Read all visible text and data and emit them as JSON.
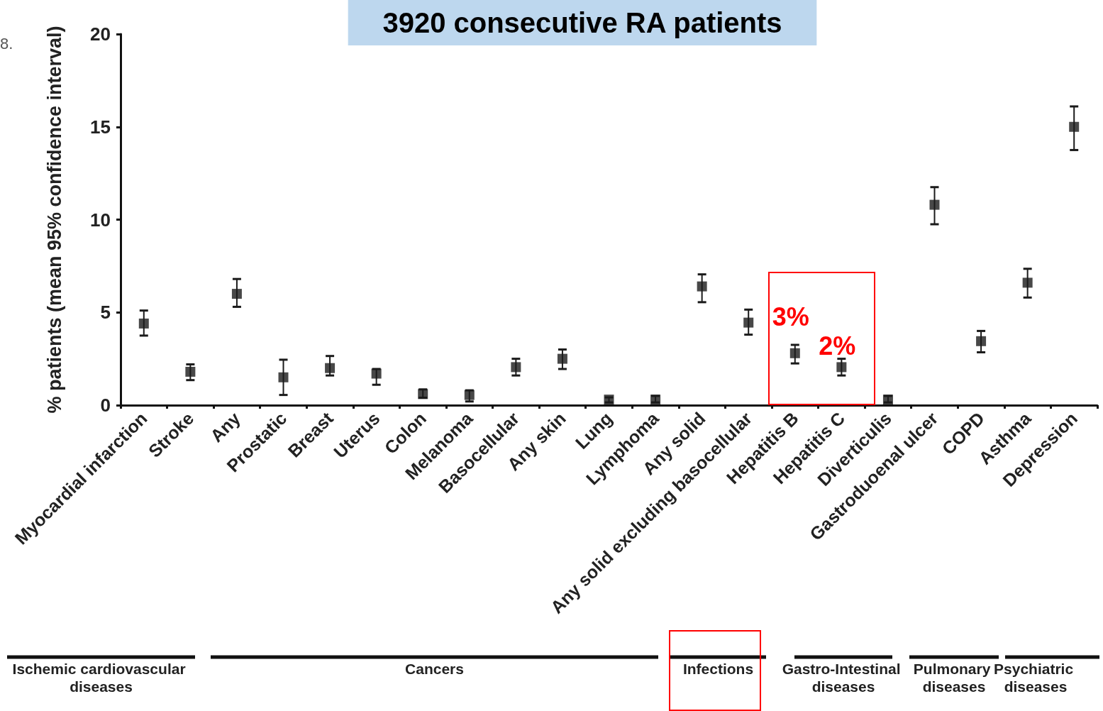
{
  "chart_data": {
    "type": "scatter",
    "title": "3920 consecutive RA patients",
    "ylabel": "% patients (mean 95% confidence interval)",
    "categories": [
      "Myocardial infarction",
      "Stroke",
      "Any",
      "Prostatic",
      "Breast",
      "Uterus",
      "Colon",
      "Melanoma",
      "Basocellular",
      "Any skin",
      "Lung",
      "Lymphoma",
      "Any solid",
      "Any solid excluding basocellular",
      "Hepatitis B",
      "Hepatitis C",
      "Diverticulis",
      "Gastroduoenal ulcer",
      "COPD",
      "Asthma",
      "Depression"
    ],
    "series": [
      {
        "color": "#1a1a1a",
        "values": [
          4.4,
          1.8,
          6.0,
          1.5,
          2.0,
          1.7,
          0.6,
          0.55,
          2.05,
          2.5,
          0.3,
          0.3,
          6.4,
          4.45,
          2.8,
          2.05,
          0.3,
          10.8,
          3.45,
          6.6,
          15.0
        ],
        "errors": [
          [
            3.75,
            5.1
          ],
          [
            1.35,
            2.2
          ],
          [
            5.3,
            6.8
          ],
          [
            0.55,
            2.45
          ],
          [
            1.6,
            2.65
          ],
          [
            1.1,
            1.95
          ],
          [
            0.4,
            0.85
          ],
          [
            0.2,
            0.8
          ],
          [
            1.6,
            2.5
          ],
          [
            1.95,
            3.0
          ],
          [
            0.15,
            0.42
          ],
          [
            0.15,
            0.5
          ],
          [
            5.55,
            7.05
          ],
          [
            3.8,
            5.15
          ],
          [
            2.25,
            3.25
          ],
          [
            1.6,
            2.5
          ],
          [
            0.15,
            0.5
          ],
          [
            9.75,
            11.75
          ],
          [
            2.85,
            4.0
          ],
          [
            5.8,
            7.35
          ],
          [
            13.75,
            16.1
          ]
        ]
      }
    ],
    "ylim": [
      0,
      20
    ],
    "yticks": [
      0,
      5,
      10,
      15,
      20
    ],
    "grid": false,
    "marker": "square",
    "annotations": [
      "8.",
      "Ischemic cardiovascular diseases",
      "Cancers",
      "Infections",
      "Gastro-Intestinal diseases",
      "Pulmonary diseases",
      "Psychiatric diseases",
      "3%",
      "2%"
    ]
  }
}
